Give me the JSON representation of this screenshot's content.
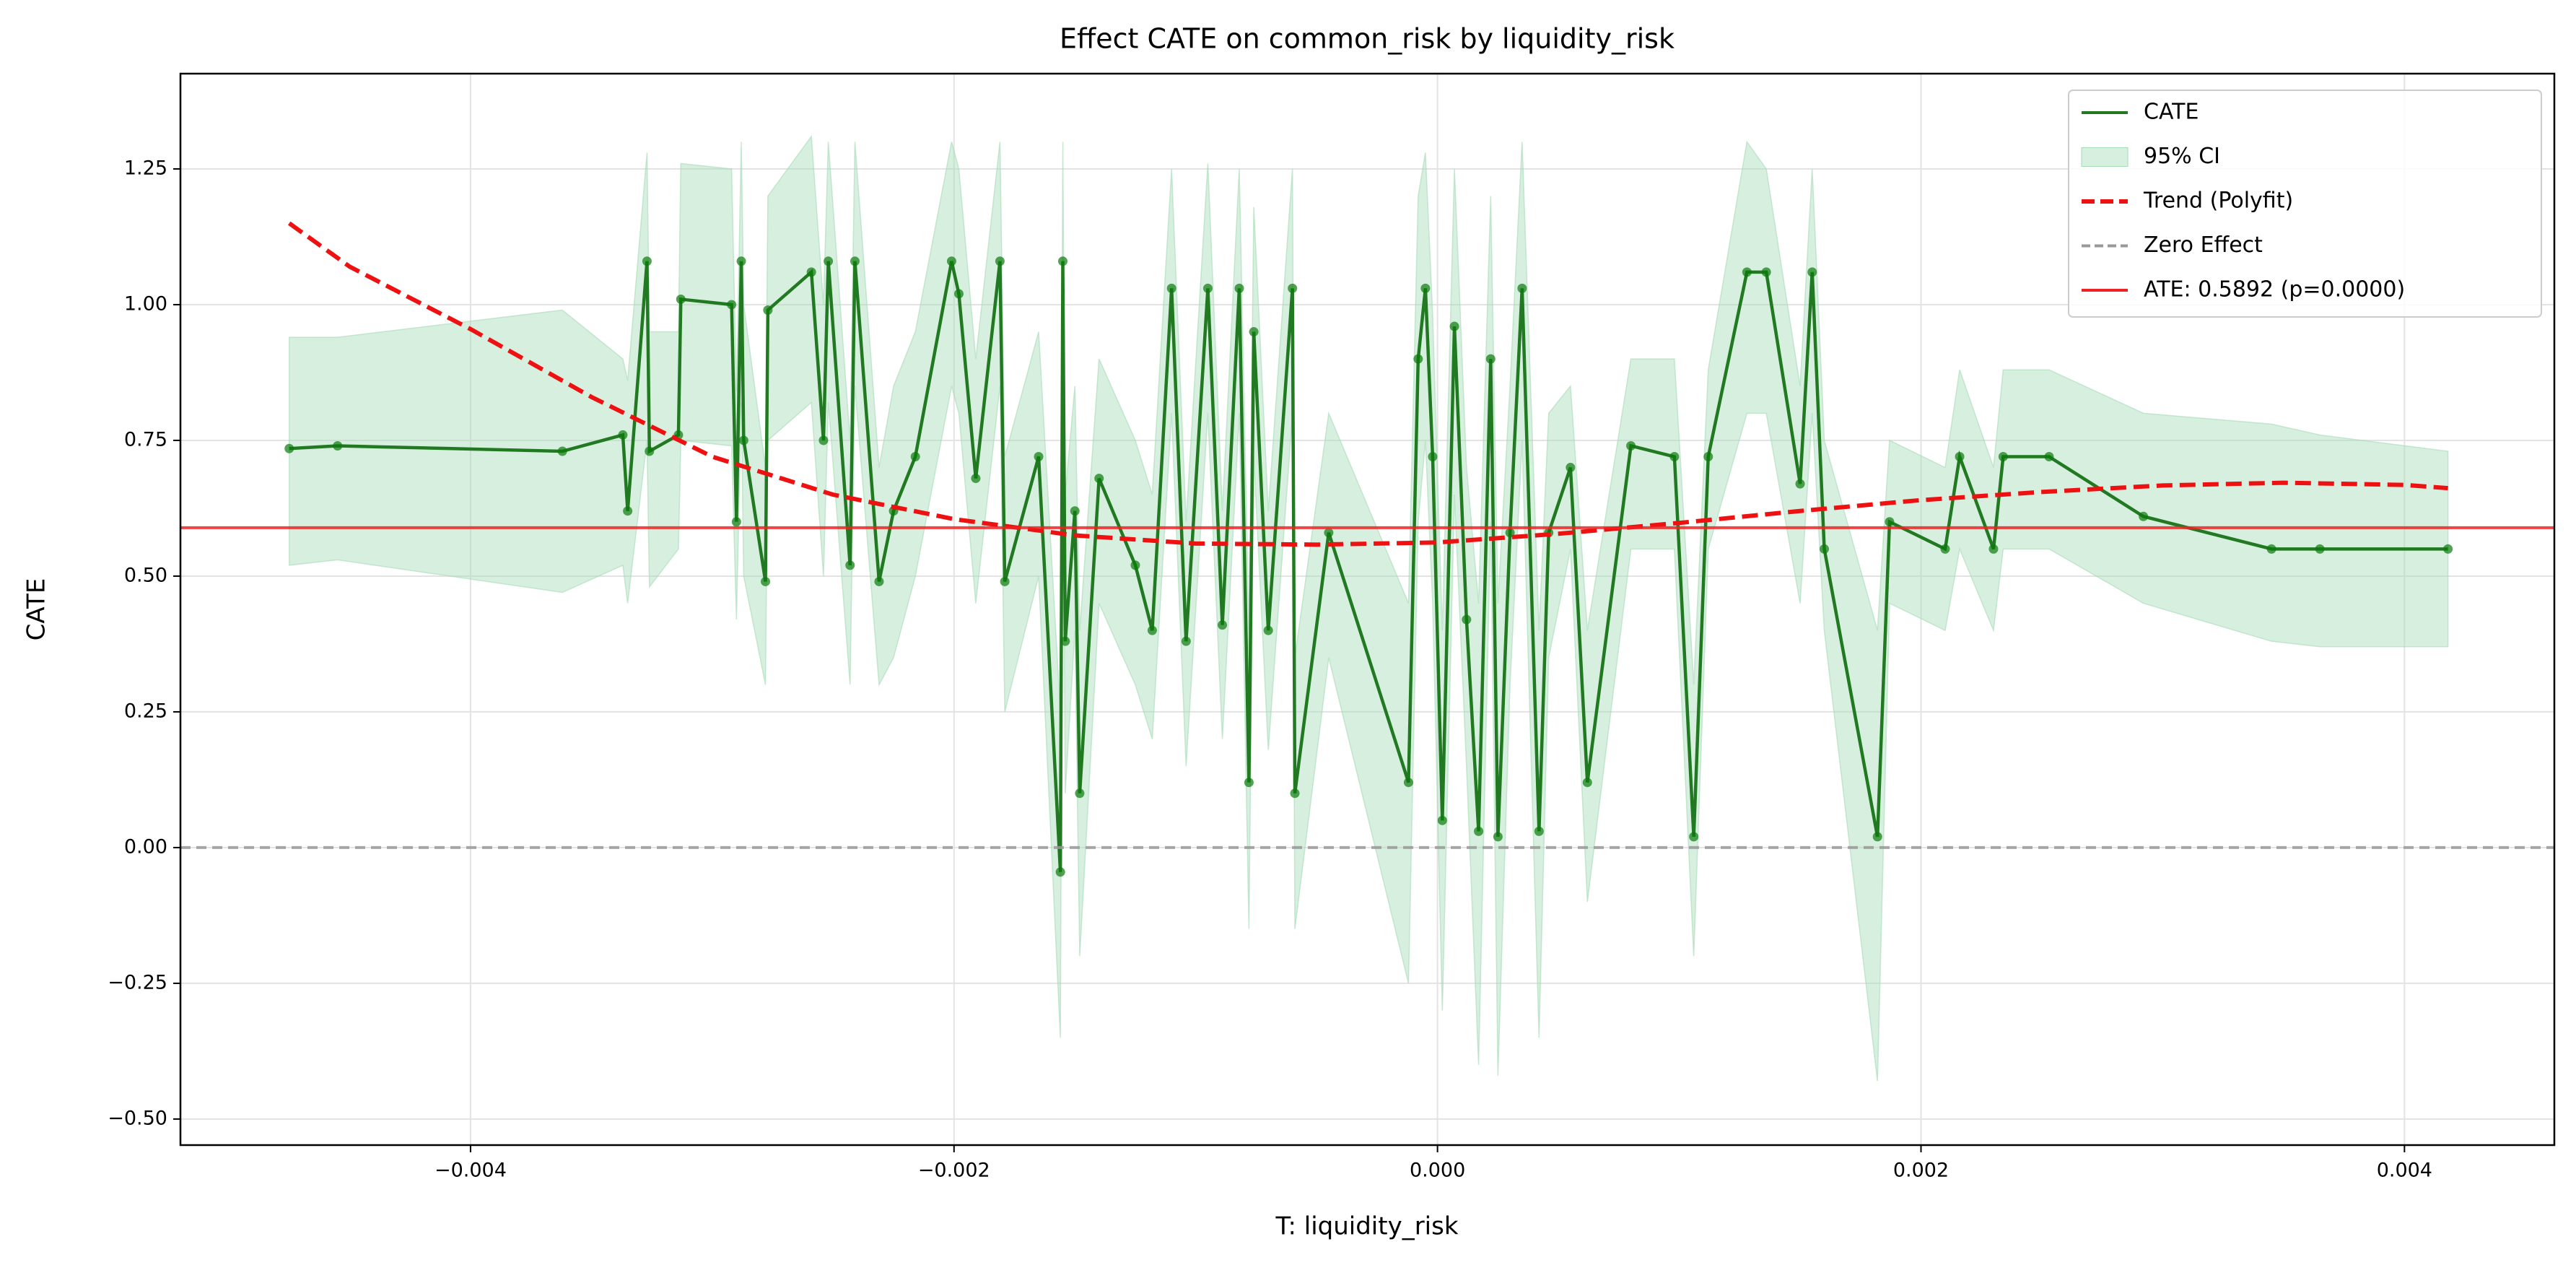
{
  "chart_data": {
    "type": "line",
    "title": "Effect CATE  on common_risk by liquidity_risk",
    "xlabel": "T: liquidity_risk",
    "ylabel": "CATE",
    "xlim": [
      -0.0052,
      0.00462
    ],
    "ylim": [
      -0.548,
      1.4255
    ],
    "xticks": [
      {
        "value": -0.004,
        "label": "−0.004"
      },
      {
        "value": -0.002,
        "label": "−0.002"
      },
      {
        "value": 0,
        "label": "0.000"
      },
      {
        "value": 0.002,
        "label": "0.002"
      },
      {
        "value": 0.004,
        "label": "0.004"
      }
    ],
    "yticks": [
      {
        "value": -0.5,
        "label": "−0.50"
      },
      {
        "value": -0.25,
        "label": "−0.25"
      },
      {
        "value": 0,
        "label": "0.00"
      },
      {
        "value": 0.25,
        "label": "0.25"
      },
      {
        "value": 0.5,
        "label": "0.50"
      },
      {
        "value": 0.75,
        "label": "0.75"
      },
      {
        "value": 1.0,
        "label": "1.00"
      },
      {
        "value": 1.25,
        "label": "1.25"
      }
    ],
    "grid": true,
    "legend": "upper right",
    "series": [
      {
        "name": "95% CI",
        "kind": "band",
        "color": "#a6dbb8",
        "x": [
          -0.00475,
          -0.00455,
          -0.00362,
          -0.00337,
          -0.00335,
          -0.00327,
          -0.00326,
          -0.00314,
          -0.00313,
          -0.00292,
          -0.0029,
          -0.00288,
          -0.00287,
          -0.00278,
          -0.00277,
          -0.00259,
          -0.00254,
          -0.00252,
          -0.00243,
          -0.00241,
          -0.00231,
          -0.00225,
          -0.00216,
          -0.00201,
          -0.00198,
          -0.00191,
          -0.00181,
          -0.00179,
          -0.00165,
          -0.00156,
          -0.00155,
          -0.00154,
          -0.0015,
          -0.00148,
          -0.0014,
          -0.00125,
          -0.00118,
          -0.0011,
          -0.00104,
          -0.00095,
          -0.00089,
          -0.00082,
          -0.00078,
          -0.00076,
          -0.0007,
          -0.0006,
          -0.00059,
          -0.00045,
          -0.00012,
          -8e-05,
          -5e-05,
          -2e-05,
          2e-05,
          7e-05,
          0.00012,
          0.00017,
          0.00022,
          0.00025,
          0.0003,
          0.00035,
          0.00042,
          0.00046,
          0.00055,
          0.00062,
          0.0008,
          0.00098,
          0.00106,
          0.00112,
          0.00128,
          0.00136,
          0.0015,
          0.00155,
          0.0016,
          0.00182,
          0.00187,
          0.0021,
          0.00216,
          0.0023,
          0.00234,
          0.00253,
          0.00292,
          0.00345,
          0.00365,
          0.00418
        ],
        "lower": [
          0.52,
          0.53,
          0.47,
          0.52,
          0.45,
          0.75,
          0.48,
          0.55,
          0.75,
          0.74,
          0.42,
          0.82,
          0.5,
          0.3,
          0.75,
          0.82,
          0.5,
          0.82,
          0.3,
          0.85,
          0.3,
          0.35,
          0.5,
          0.85,
          0.8,
          0.45,
          0.85,
          0.25,
          0.5,
          -0.35,
          0.85,
          0.1,
          0.4,
          -0.2,
          0.45,
          0.3,
          0.2,
          0.8,
          0.15,
          0.8,
          0.2,
          0.8,
          -0.15,
          0.72,
          0.18,
          0.8,
          -0.15,
          0.35,
          -0.25,
          0.6,
          0.75,
          0.45,
          -0.3,
          0.65,
          0.15,
          -0.4,
          0.6,
          -0.42,
          0.3,
          0.75,
          -0.35,
          0.35,
          0.55,
          -0.1,
          0.55,
          0.55,
          -0.2,
          0.55,
          0.8,
          0.8,
          0.45,
          0.8,
          0.4,
          -0.43,
          0.45,
          0.4,
          0.55,
          0.4,
          0.55,
          0.55,
          0.45,
          0.38,
          0.37,
          0.37
        ],
        "upper": [
          0.94,
          0.94,
          0.99,
          0.9,
          0.86,
          1.28,
          0.95,
          0.95,
          1.26,
          1.25,
          0.84,
          1.3,
          1.0,
          0.7,
          1.2,
          1.31,
          1.0,
          1.3,
          0.75,
          1.3,
          0.7,
          0.85,
          0.95,
          1.3,
          1.25,
          0.9,
          1.3,
          0.72,
          0.95,
          0.25,
          1.3,
          0.65,
          0.85,
          0.4,
          0.9,
          0.75,
          0.65,
          1.25,
          0.6,
          1.26,
          0.62,
          1.25,
          0.4,
          1.18,
          0.62,
          1.25,
          0.35,
          0.8,
          0.45,
          1.2,
          1.28,
          0.98,
          0.4,
          1.25,
          0.7,
          0.45,
          1.2,
          0.45,
          0.85,
          1.3,
          0.4,
          0.8,
          0.85,
          0.4,
          0.9,
          0.9,
          0.3,
          0.88,
          1.3,
          1.25,
          0.85,
          1.25,
          0.75,
          0.4,
          0.75,
          0.7,
          0.88,
          0.7,
          0.88,
          0.88,
          0.8,
          0.78,
          0.76,
          0.73
        ]
      },
      {
        "name": "CATE",
        "kind": "line",
        "color": "#217a21",
        "x": [
          -0.00475,
          -0.00455,
          -0.00362,
          -0.00337,
          -0.00335,
          -0.00327,
          -0.00326,
          -0.00314,
          -0.00313,
          -0.00292,
          -0.0029,
          -0.00288,
          -0.00287,
          -0.00278,
          -0.00277,
          -0.00259,
          -0.00254,
          -0.00252,
          -0.00243,
          -0.00241,
          -0.00231,
          -0.00225,
          -0.00216,
          -0.00201,
          -0.00198,
          -0.00191,
          -0.00181,
          -0.00179,
          -0.00165,
          -0.00156,
          -0.00155,
          -0.00154,
          -0.0015,
          -0.00148,
          -0.0014,
          -0.00125,
          -0.00118,
          -0.0011,
          -0.00104,
          -0.00095,
          -0.00089,
          -0.00082,
          -0.00078,
          -0.00076,
          -0.0007,
          -0.0006,
          -0.00059,
          -0.00045,
          -0.00012,
          -8e-05,
          -5e-05,
          -2e-05,
          2e-05,
          7e-05,
          0.00012,
          0.00017,
          0.00022,
          0.00025,
          0.0003,
          0.00035,
          0.00042,
          0.00046,
          0.00055,
          0.00062,
          0.0008,
          0.00098,
          0.00106,
          0.00112,
          0.00128,
          0.00136,
          0.0015,
          0.00155,
          0.0016,
          0.00182,
          0.00187,
          0.0021,
          0.00216,
          0.0023,
          0.00234,
          0.00253,
          0.00292,
          0.00345,
          0.00365,
          0.00418
        ],
        "values": [
          0.735,
          0.74,
          0.73,
          0.76,
          0.62,
          1.08,
          0.73,
          0.76,
          1.01,
          1.0,
          0.6,
          1.08,
          0.75,
          0.49,
          0.99,
          1.06,
          0.75,
          1.08,
          0.52,
          1.08,
          0.49,
          0.62,
          0.72,
          1.08,
          1.02,
          0.68,
          1.08,
          0.49,
          0.72,
          -0.045,
          1.08,
          0.38,
          0.62,
          0.1,
          0.68,
          0.52,
          0.4,
          1.03,
          0.38,
          1.03,
          0.41,
          1.03,
          0.12,
          0.95,
          0.4,
          1.03,
          0.1,
          0.58,
          0.12,
          0.9,
          1.03,
          0.72,
          0.05,
          0.96,
          0.42,
          0.03,
          0.9,
          0.02,
          0.58,
          1.03,
          0.03,
          0.58,
          0.7,
          0.12,
          0.74,
          0.72,
          0.02,
          0.72,
          1.06,
          1.06,
          0.67,
          1.06,
          0.55,
          0.02,
          0.6,
          0.55,
          0.72,
          0.55,
          0.72,
          0.72,
          0.61,
          0.55,
          0.55,
          0.55
        ]
      },
      {
        "name": "Trend (Polyfit)",
        "kind": "dashed",
        "color": "#ee1111",
        "x": [
          -0.00475,
          -0.0045,
          -0.004,
          -0.0035,
          -0.003,
          -0.0025,
          -0.002,
          -0.0015,
          -0.001,
          -0.0005,
          0,
          0.0005,
          0.001,
          0.0015,
          0.002,
          0.0025,
          0.003,
          0.0035,
          0.004,
          0.00418
        ],
        "values": [
          1.15,
          1.07,
          0.955,
          0.83,
          0.72,
          0.65,
          0.605,
          0.575,
          0.56,
          0.558,
          0.562,
          0.578,
          0.598,
          0.62,
          0.64,
          0.655,
          0.667,
          0.672,
          0.668,
          0.662
        ]
      },
      {
        "name": "Zero Effect",
        "kind": "hline",
        "color": "#999999",
        "value": 0
      },
      {
        "name": "ATE: 0.5892 (p=0.0000)",
        "kind": "hline",
        "color": "#ee2222",
        "value": 0.5892
      }
    ]
  }
}
